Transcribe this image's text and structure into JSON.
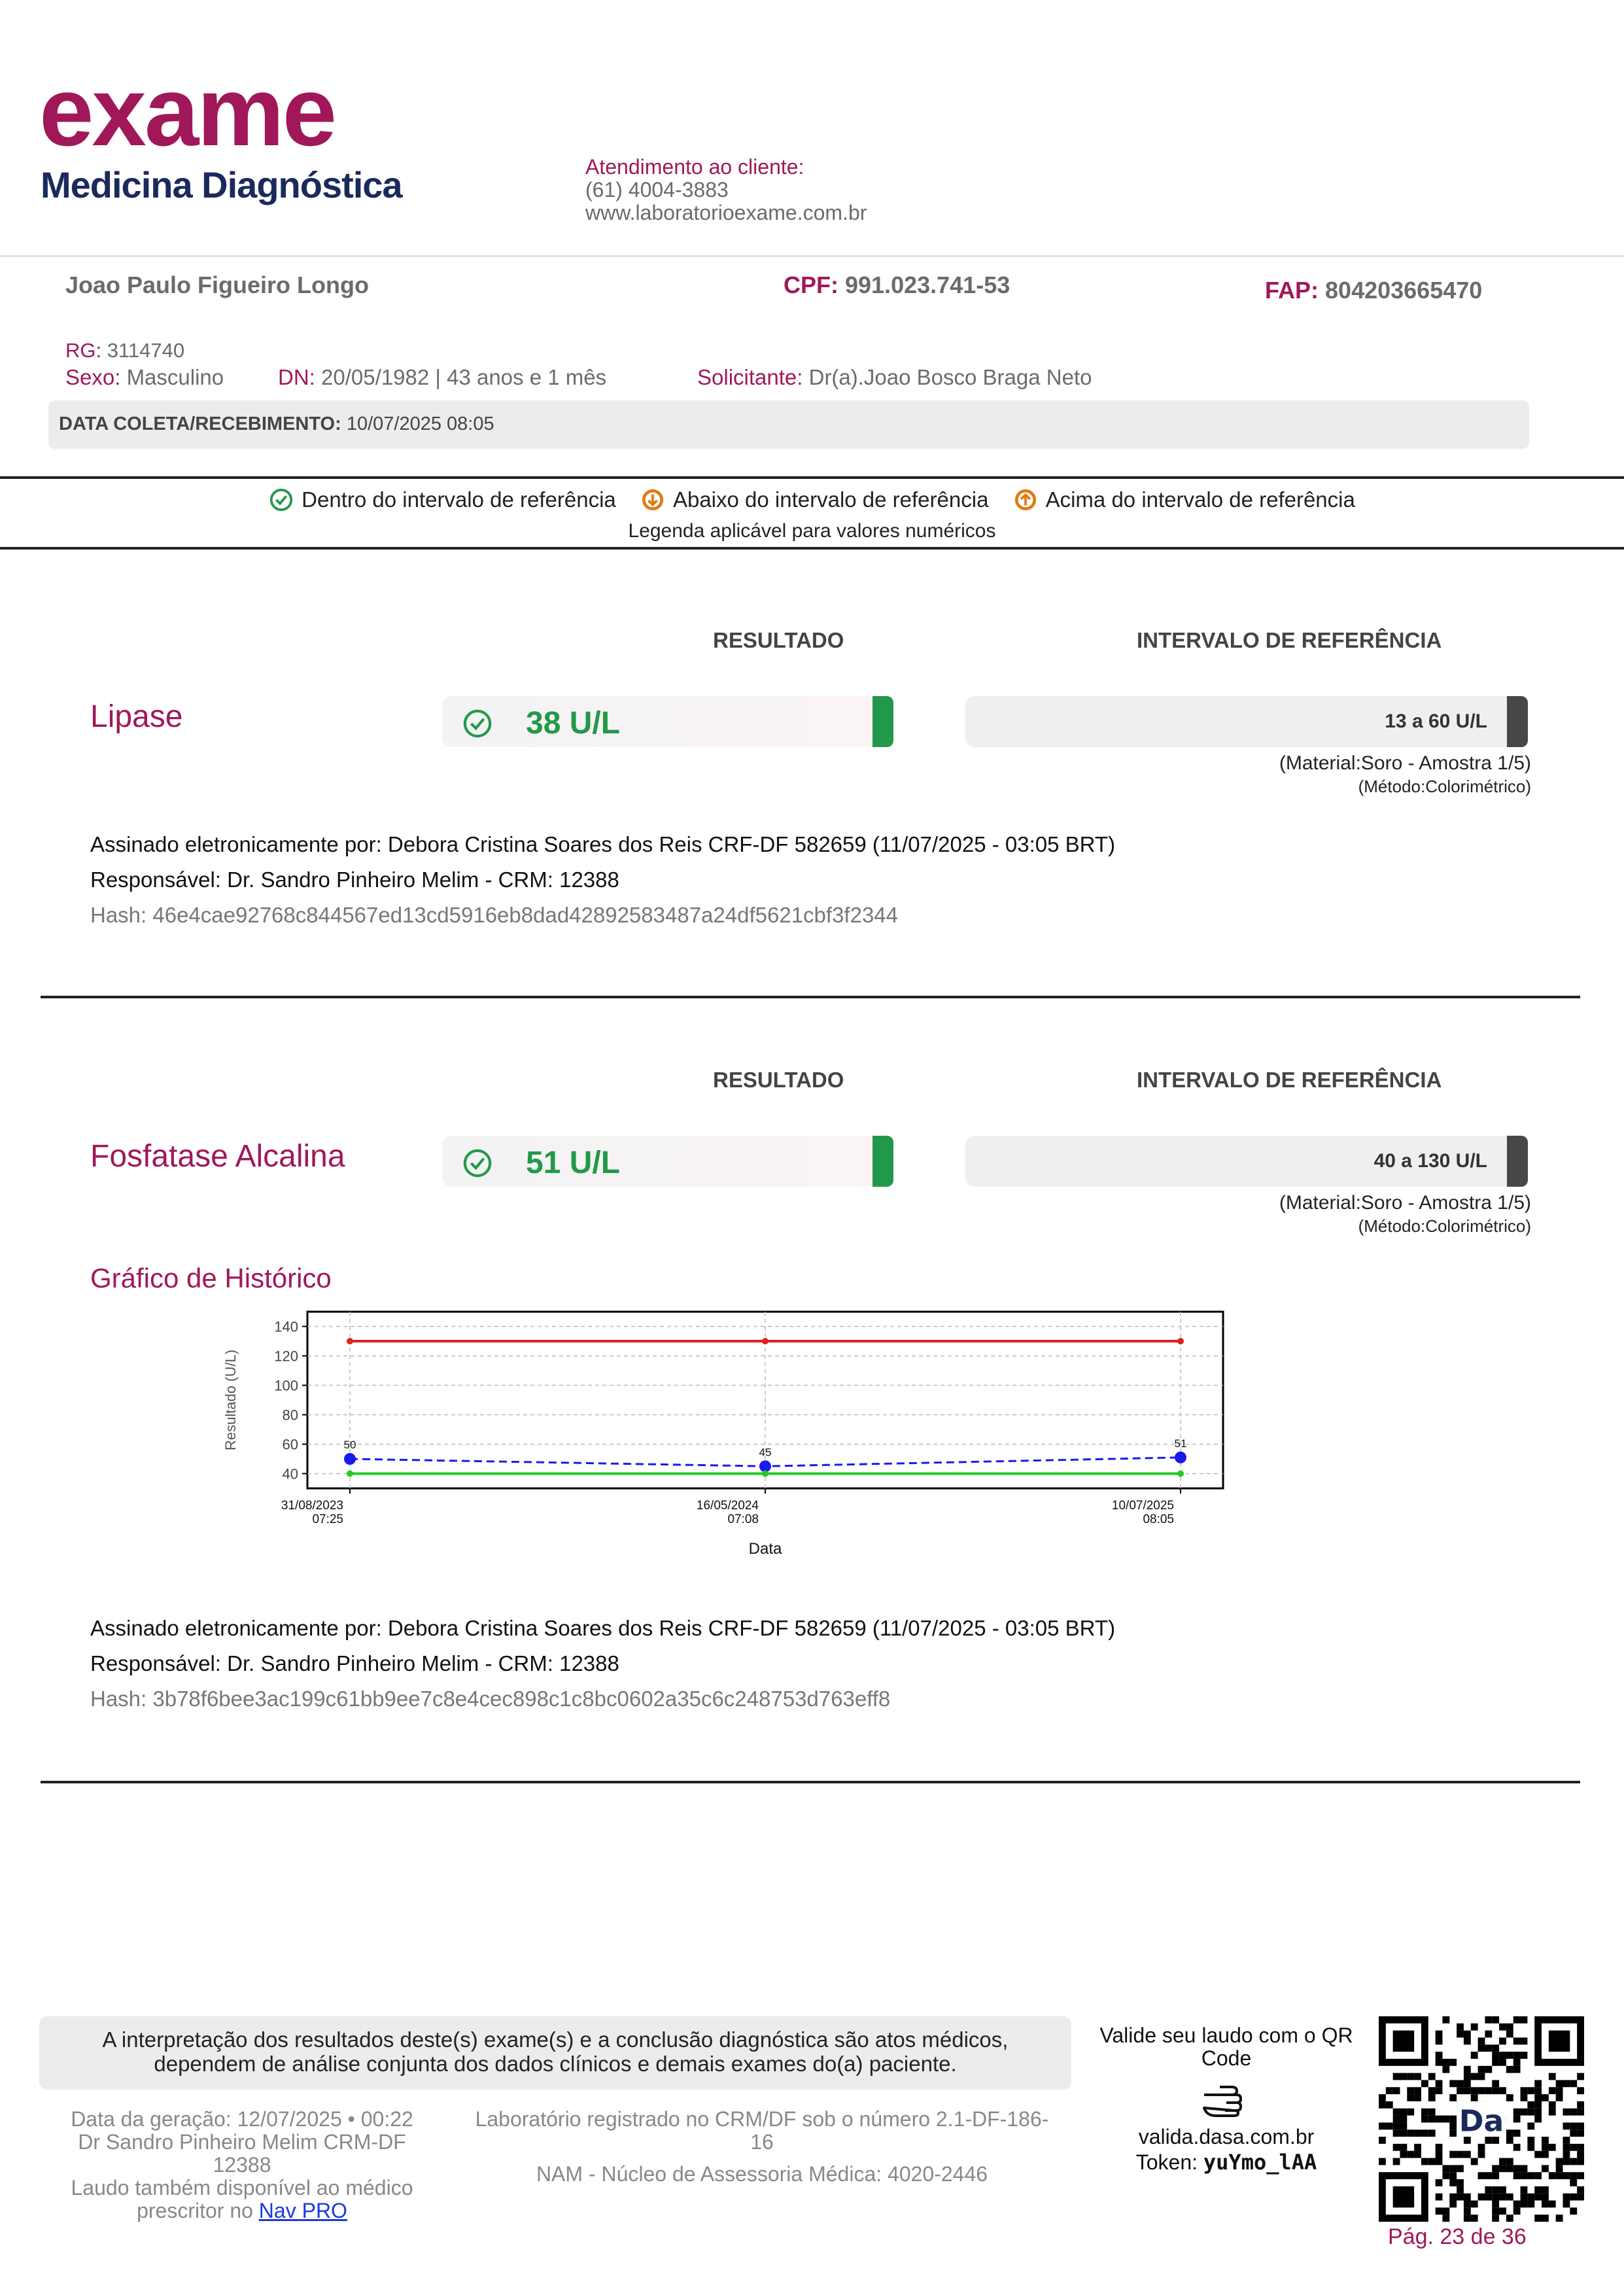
{
  "brand": {
    "name": "exame",
    "subtitle": "Medicina Diagnóstica"
  },
  "contact": {
    "title": "Atendimento ao cliente:",
    "phone": "(61) 4004-3883",
    "site": "www.laboratorioexame.com.br"
  },
  "patient": {
    "name": "Joao Paulo Figueiro Longo",
    "cpf_label": "CPF:",
    "cpf": "991.023.741-53",
    "fap_label": "FAP:",
    "fap": "804203665470",
    "rg_label": "RG:",
    "rg": "3114740",
    "sex_label": "Sexo:",
    "sex": "Masculino",
    "dn_label": "DN:",
    "dn": "20/05/1982 | 43 anos e 1 mês",
    "requester_label": "Solicitante:",
    "requester": "Dr(a).Joao Bosco Braga Neto",
    "collection_label": "DATA COLETA/RECEBIMENTO:",
    "collection": "10/07/2025 08:05"
  },
  "legend": {
    "within": "Dentro do intervalo de referência",
    "below": "Abaixo do intervalo de referência",
    "above": "Acima do intervalo de referência",
    "note": "Legenda aplicável para valores numéricos",
    "colors": {
      "within": "#22994a",
      "below": "#e07b12",
      "above": "#e07b12"
    }
  },
  "col_result": "RESULTADO",
  "col_reference": "INTERVALO DE REFERÊNCIA",
  "tests": [
    {
      "name": "Lipase",
      "result": "38 U/L",
      "reference": "13 a 60 U/L",
      "material": "(Material:Soro - Amostra 1/5)",
      "method": "(Método:Colorimétrico)",
      "signed": "Assinado eletronicamente por: Debora Cristina Soares dos Reis CRF-DF 582659 (11/07/2025 - 03:05 BRT)",
      "responsible": "Responsável: Dr. Sandro Pinheiro Melim - CRM: 12388",
      "hash": "Hash: 46e4cae92768c844567ed13cd5916eb8dad42892583487a24df5621cbf3f2344"
    },
    {
      "name": "Fosfatase Alcalina",
      "result": "51 U/L",
      "reference": "40 a 130 U/L",
      "material": "(Material:Soro - Amostra 1/5)",
      "method": "(Método:Colorimétrico)",
      "signed": "Assinado eletronicamente por: Debora Cristina Soares dos Reis CRF-DF 582659 (11/07/2025 - 03:05 BRT)",
      "responsible": "Responsável: Dr. Sandro Pinheiro Melim - CRM: 12388",
      "hash": "Hash: 3b78f6bee3ac199c61bb9ee7c8e4cec898c1c8bc0602a35c6c248753d763eff8"
    }
  ],
  "history_title": "Gráfico de Histórico",
  "chart_data": {
    "type": "line",
    "xlabel": "Data",
    "ylabel": "Resultado (U/L)",
    "ylim": [
      30,
      150
    ],
    "yticks": [
      40,
      60,
      80,
      100,
      120,
      140
    ],
    "categories": [
      [
        "31/08/2023",
        "07:25"
      ],
      [
        "16/05/2024",
        "07:08"
      ],
      [
        "10/07/2025",
        "08:05"
      ]
    ],
    "grid": true,
    "series": [
      {
        "name": "",
        "values": [
          130,
          130,
          130
        ],
        "color": "#e02020",
        "style": "solid"
      },
      {
        "name": "",
        "values": [
          50,
          45,
          51
        ],
        "labels": [
          "50",
          "45",
          "51"
        ],
        "color": "#1a1aee",
        "style": "dashed"
      },
      {
        "name": "",
        "values": [
          40,
          40,
          40
        ],
        "color": "#22cc22",
        "style": "solid"
      }
    ]
  },
  "footer": {
    "disclaimer_1": "A interpretação dos resultados deste(s) exame(s) e a conclusão diagnóstica são atos médicos,",
    "disclaimer_2": "dependem de análise conjunta dos dados clínicos e demais exames do(a) paciente.",
    "generated_1": "Data da geração: 12/07/2025 • 00:22",
    "generated_2": "Dr Sandro Pinheiro Melim CRM-DF",
    "generated_3": "12388",
    "generated_4": "Laudo também disponível ao médico",
    "generated_5": "prescritor no",
    "navpro": "Nav PRO",
    "lab_1": "Laboratório registrado no CRM/DF sob o número 2.1-DF-186-",
    "lab_2": "16",
    "nam": "NAM - Núcleo de Assessoria Médica: 4020-2446",
    "validate_1": "Valide seu laudo com o QR",
    "validate_2": "Code",
    "validate_site": "valida.dasa.com.br",
    "token_label": "Token:",
    "token": "yuYmo_lAA",
    "page": "Pág. 23 de 36"
  }
}
